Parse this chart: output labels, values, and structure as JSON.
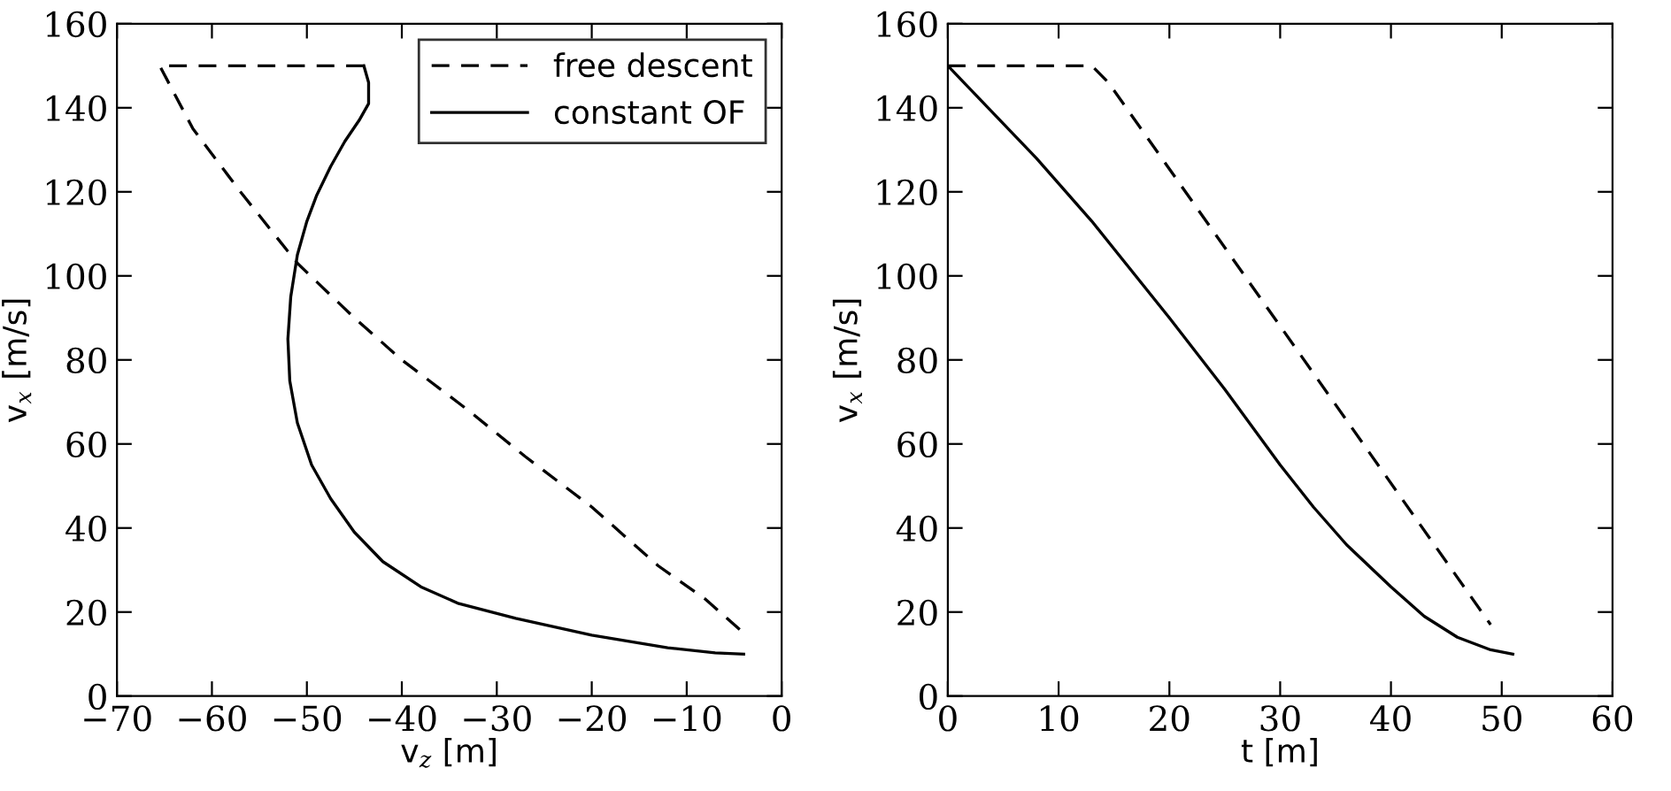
{
  "chart_data": [
    {
      "type": "line",
      "xlabel": "v$_{z}$ [m]",
      "ylabel": "v$_{x}$ [m/s]",
      "xlim": [
        -70,
        0
      ],
      "ylim": [
        0,
        160
      ],
      "xticks": [
        {
          "value": -70,
          "label": "−70"
        },
        {
          "value": -60,
          "label": "−60"
        },
        {
          "value": -50,
          "label": "−50"
        },
        {
          "value": -40,
          "label": "−40"
        },
        {
          "value": -30,
          "label": "−30"
        },
        {
          "value": -20,
          "label": "−20"
        },
        {
          "value": -10,
          "label": "−10"
        },
        0
      ],
      "yticks": [
        0,
        20,
        40,
        60,
        80,
        100,
        120,
        140,
        160
      ],
      "grid": false,
      "legend": "top right",
      "series": [
        {
          "name": "free descent",
          "color": "#000000",
          "line_style": "dashed",
          "x": [
            -44,
            -65.5,
            -62,
            -57,
            -51,
            -45,
            -40,
            -33,
            -27,
            -20,
            -13,
            -8,
            -4
          ],
          "values": [
            150,
            150,
            135,
            120,
            103,
            90,
            80,
            68,
            57,
            45,
            31,
            23,
            15
          ]
        },
        {
          "name": "constant OF",
          "color": "#000000",
          "line_style": "solid",
          "x": [
            -44,
            -43.5,
            -43.5,
            -44.5,
            -46,
            -47.5,
            -49,
            -50,
            -51,
            -51.7,
            -52,
            -51.8,
            -51,
            -49.5,
            -47.5,
            -45,
            -42,
            -38,
            -34,
            -28,
            -20,
            -12,
            -7,
            -4
          ],
          "values": [
            150,
            146,
            141,
            137,
            132,
            126,
            119,
            113,
            105,
            95,
            85,
            75,
            65,
            55,
            47,
            39,
            32,
            26,
            22,
            18.5,
            14.5,
            11.5,
            10.3,
            10
          ]
        }
      ]
    },
    {
      "type": "line",
      "xlabel": "t [m]",
      "ylabel": "v$_{x}$ [m/s]",
      "xlim": [
        0,
        60
      ],
      "ylim": [
        0,
        160
      ],
      "xticks": [
        0,
        10,
        20,
        30,
        40,
        50,
        60
      ],
      "yticks": [
        0,
        20,
        40,
        60,
        80,
        100,
        120,
        140,
        160
      ],
      "grid": false,
      "legend": false,
      "series": [
        {
          "color": "#000000",
          "line_style": "dashed",
          "x": [
            0,
            13,
            14.5,
            49
          ],
          "values": [
            150,
            150,
            146,
            17
          ]
        },
        {
          "color": "#000000",
          "line_style": "solid",
          "x": [
            0,
            8,
            13,
            20,
            25,
            30,
            33,
            36,
            40,
            43,
            46,
            49,
            51
          ],
          "values": [
            150,
            128,
            113,
            90,
            73,
            55,
            45,
            36,
            26,
            19,
            14,
            11,
            10
          ]
        }
      ]
    }
  ]
}
